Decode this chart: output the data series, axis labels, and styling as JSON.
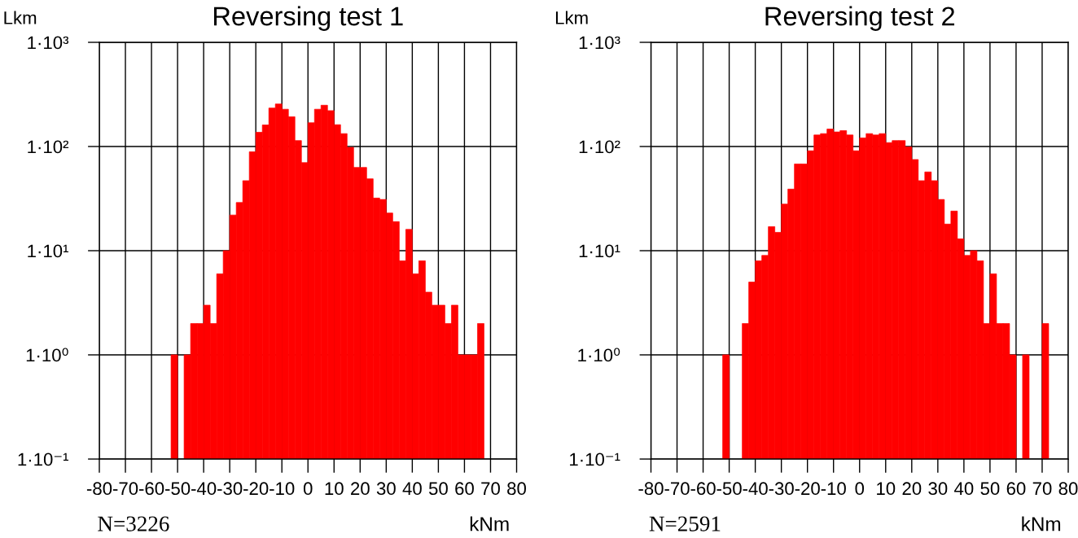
{
  "chart_data": [
    {
      "type": "histogram",
      "title": "Reversing test 1",
      "xlabel": "kNm",
      "ylabel": "Lkm",
      "color": "#ff0000",
      "bins": [
        -52.5,
        -50,
        -47.5,
        -45,
        -42.5,
        -40,
        -37.5,
        -35,
        -32.5,
        -30,
        -27.5,
        -25,
        -22.5,
        -20,
        -17.5,
        -15,
        -12.5,
        -10,
        -7.5,
        -5,
        -2.5,
        0,
        2.5,
        5,
        7.5,
        10,
        12.5,
        15,
        17.5,
        20,
        22.5,
        25,
        27.5,
        30,
        32.5,
        35,
        37.5,
        40,
        42.5,
        45,
        47.5,
        50,
        52.5,
        55,
        57.5,
        60,
        62.5,
        65,
        67.5
      ],
      "values": [
        1,
        null,
        1,
        2,
        2,
        3,
        2,
        6,
        10,
        22,
        29,
        47,
        89,
        137,
        161,
        234,
        256,
        228,
        193,
        114,
        70,
        169,
        228,
        249,
        221,
        162,
        133,
        98,
        63,
        63,
        49,
        32,
        31,
        23,
        19,
        8,
        16,
        6,
        8,
        4,
        3,
        3,
        2,
        3,
        1,
        1,
        1,
        2
      ],
      "xlim": [
        -80,
        80
      ],
      "xticks": [
        -80,
        -70,
        -60,
        -50,
        -40,
        -30,
        -20,
        -10,
        0,
        10,
        20,
        30,
        40,
        50,
        60,
        70,
        80
      ],
      "ylim": [
        0.1,
        1000
      ],
      "yticks": [
        {
          "value": 0.1,
          "label": "1·10⁻¹"
        },
        {
          "value": 1,
          "label": "1·10⁰"
        },
        {
          "value": 10,
          "label": "1·10¹"
        },
        {
          "value": 100,
          "label": "1·10²"
        },
        {
          "value": 1000,
          "label": "1·10³"
        }
      ],
      "log": "y",
      "grid": true,
      "annotations": [
        "N=3226"
      ]
    },
    {
      "type": "histogram",
      "title": "Reversing test 2",
      "xlabel": "kNm",
      "ylabel": "Lkm",
      "color": "#ff0000",
      "bins": [
        -52.5,
        -50,
        -47.5,
        -45,
        -42.5,
        -40,
        -37.5,
        -35,
        -32.5,
        -30,
        -27.5,
        -25,
        -22.5,
        -20,
        -17.5,
        -15,
        -12.5,
        -10,
        -7.5,
        -5,
        -2.5,
        0,
        2.5,
        5,
        7.5,
        10,
        12.5,
        15,
        17.5,
        20,
        22.5,
        25,
        27.5,
        30,
        32.5,
        35,
        37.5,
        40,
        42.5,
        45,
        47.5,
        50,
        52.5,
        55,
        57.5,
        60,
        62.5,
        65,
        67.5,
        70,
        72.5
      ],
      "values": [
        1,
        null,
        null,
        2,
        5,
        8,
        9,
        17,
        15,
        28,
        39,
        68,
        68,
        91,
        129,
        133,
        147,
        138,
        142,
        129,
        91,
        121,
        133,
        129,
        133,
        109,
        114,
        114,
        99,
        75,
        47,
        57,
        47,
        31,
        18,
        24,
        13,
        9,
        10,
        8,
        2,
        6,
        2,
        2,
        1,
        null,
        1,
        null,
        null,
        2
      ],
      "xlim": [
        -80,
        80
      ],
      "xticks": [
        -80,
        -70,
        -60,
        -50,
        -40,
        -30,
        -20,
        -10,
        0,
        10,
        20,
        30,
        40,
        50,
        60,
        70,
        80
      ],
      "ylim": [
        0.1,
        1000
      ],
      "yticks": [
        {
          "value": 0.1,
          "label": "1·10⁻¹"
        },
        {
          "value": 1,
          "label": "1·10⁰"
        },
        {
          "value": 10,
          "label": "1·10¹"
        },
        {
          "value": 100,
          "label": "1·10²"
        },
        {
          "value": 1000,
          "label": "1·10³"
        }
      ],
      "log": "y",
      "grid": true,
      "annotations": [
        "N=2591"
      ]
    }
  ]
}
